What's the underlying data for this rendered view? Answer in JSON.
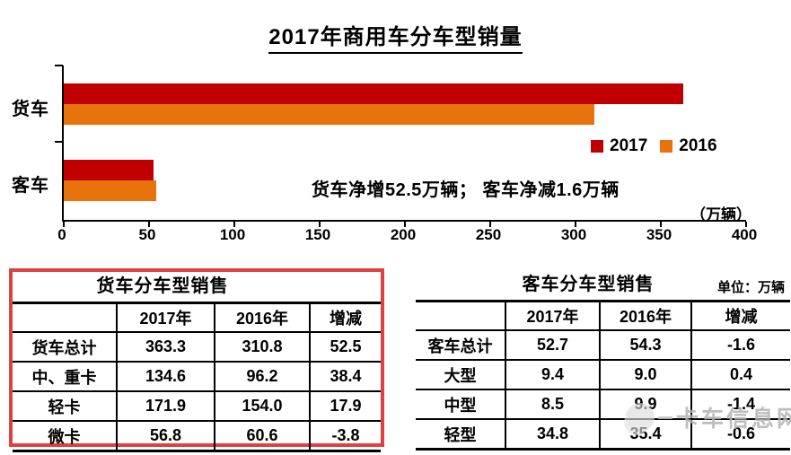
{
  "page_title": "2017年商用车分车型销量",
  "colors": {
    "series_2017": "#C00000",
    "series_2016": "#E8720C",
    "highlight_box": "#E04040",
    "axis": "#000000",
    "watermark": "#B3B3B3"
  },
  "chart_data": {
    "type": "bar",
    "orientation": "horizontal",
    "title": "2017年商用车分车型销量",
    "categories": [
      "货车",
      "客车"
    ],
    "series": [
      {
        "name": "2017",
        "color": "#C00000",
        "values": [
          363.3,
          52.7
        ]
      },
      {
        "name": "2016",
        "color": "#E8720C",
        "values": [
          310.8,
          54.3
        ]
      }
    ],
    "xlim": [
      0,
      400
    ],
    "x_ticks": [
      "0",
      "50",
      "100",
      "150",
      "200",
      "250",
      "300",
      "350",
      "400"
    ],
    "legend_position": "middle-right",
    "grid": false,
    "annotation": "货车净增52.5万辆； 客车净减1.6万辆",
    "axis_unit_label": "（万辆）"
  },
  "truck_table": {
    "title": "货车分车型销售",
    "headers": [
      "",
      "2017年",
      "2016年",
      "增减"
    ],
    "rows": [
      [
        "货车总计",
        "363.3",
        "310.8",
        "52.5"
      ],
      [
        "中、重卡",
        "134.6",
        "96.2",
        "38.4"
      ],
      [
        "轻卡",
        "171.9",
        "154.0",
        "17.9"
      ],
      [
        "微卡",
        "56.8",
        "60.6",
        "-3.8"
      ]
    ]
  },
  "bus_table": {
    "title": "客车分车型销售",
    "unit_note": "单位：万辆",
    "headers": [
      "",
      "2017年",
      "2016年",
      "增减"
    ],
    "rows": [
      [
        "客车总计",
        "52.7",
        "54.3",
        "-1.6"
      ],
      [
        "大型",
        "9.4",
        "9.0",
        "0.4"
      ],
      [
        "中型",
        "8.5",
        "9.9",
        "-1.4"
      ],
      [
        "轻型",
        "34.8",
        "35.4",
        "-0.6"
      ]
    ]
  },
  "watermark": {
    "text": "卡车信息网"
  }
}
